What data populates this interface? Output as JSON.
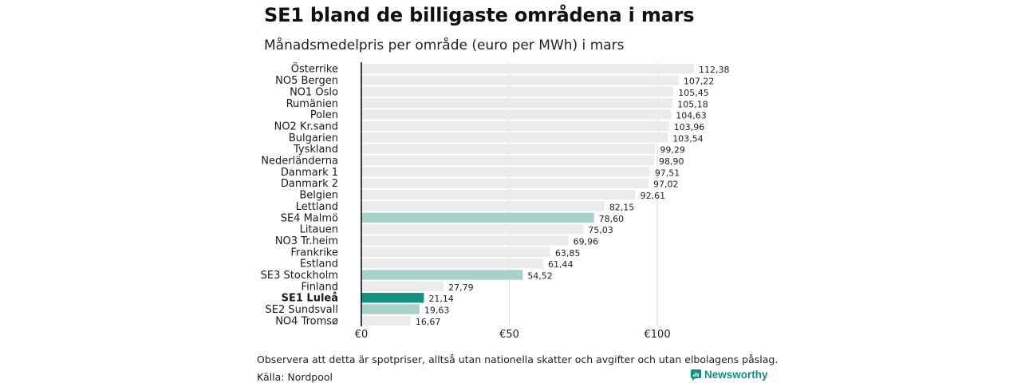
{
  "title": "SE1 bland de billigaste områdena i mars",
  "subtitle": "Månadsmedelpris per område (euro per MWh) i mars",
  "footnote": "Observera att detta är spotpriser, alltså utan nationella skatter och avgifter och utan elbolagens påslag.",
  "source": "Källa: Nordpool",
  "brand": "Newsworthy",
  "colors": {
    "default_bar": "#ebebeb",
    "se_bar": "#a8d1ca",
    "highlight_bar": "#13917f",
    "axis": "#000000",
    "grid": "#d9d9d9",
    "brand": "#0e8f80"
  },
  "chart_data": {
    "type": "bar",
    "orientation": "horizontal",
    "title": "SE1 bland de billigaste områdena i mars",
    "subtitle": "Månadsmedelpris per område (euro per MWh) i mars",
    "xlabel": "",
    "ylabel": "",
    "xlim": [
      0,
      112.38
    ],
    "xticks": [
      0,
      50,
      100
    ],
    "xtick_labels": [
      "€0",
      "€50",
      "€100"
    ],
    "grid": "vertical",
    "categories": [
      "Österrike",
      "NO5 Bergen",
      "NO1 Oslo",
      "Rumänien",
      "Polen",
      "NO2 Kr.sand",
      "Bulgarien",
      "Tyskland",
      "Nederländerna",
      "Danmark 1",
      "Danmark 2",
      "Belgien",
      "Lettland",
      "SE4 Malmö",
      "Litauen",
      "NO3 Tr.heim",
      "Frankrike",
      "Estland",
      "SE3 Stockholm",
      "Finland",
      "SE1 Luleå",
      "SE2 Sundsvall",
      "NO4 Tromsø"
    ],
    "values": [
      112.38,
      107.22,
      105.45,
      105.18,
      104.63,
      103.96,
      103.54,
      99.29,
      98.9,
      97.51,
      97.02,
      92.61,
      82.15,
      78.6,
      75.03,
      69.96,
      63.85,
      61.44,
      54.52,
      27.79,
      21.14,
      19.63,
      16.67
    ],
    "value_labels": [
      "112,38",
      "107,22",
      "105,45",
      "105,18",
      "104,63",
      "103,96",
      "103,54",
      "99,29",
      "98,90",
      "97,51",
      "97,02",
      "92,61",
      "82,15",
      "78,60",
      "75,03",
      "69,96",
      "63,85",
      "61,44",
      "54,52",
      "27,79",
      "21,14",
      "19,63",
      "16,67"
    ],
    "highlight": "SE1 Luleå",
    "swedish_areas": [
      "SE4 Malmö",
      "SE3 Stockholm",
      "SE1 Luleå",
      "SE2 Sundsvall"
    ]
  }
}
